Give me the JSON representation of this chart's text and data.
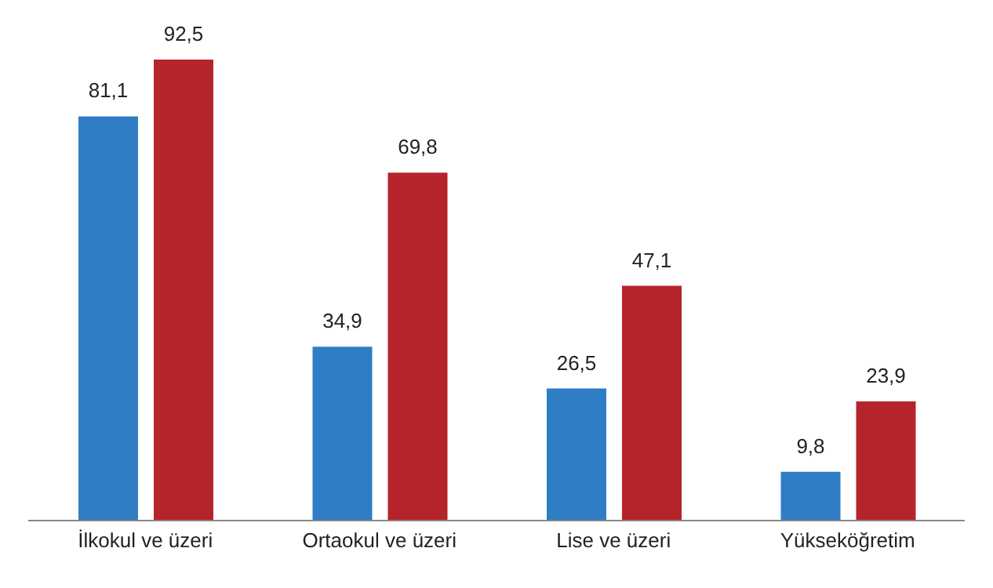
{
  "chart_data": {
    "type": "bar",
    "categories": [
      "İlkokul ve üzeri",
      "Ortaokul ve üzeri",
      "Lise ve üzeri",
      "Yükseköğretim"
    ],
    "series": [
      {
        "color": "#2f7dc4",
        "values": [
          81.1,
          34.9,
          26.5,
          9.8
        ],
        "value_labels": [
          "81,1",
          "34,9",
          "26,5",
          "9,8"
        ]
      },
      {
        "color": "#b5232b",
        "values": [
          92.5,
          69.8,
          47.1,
          23.9
        ],
        "value_labels": [
          "92,5",
          "69,8",
          "47,1",
          "23,9"
        ]
      }
    ],
    "grid": false,
    "legend": false
  }
}
